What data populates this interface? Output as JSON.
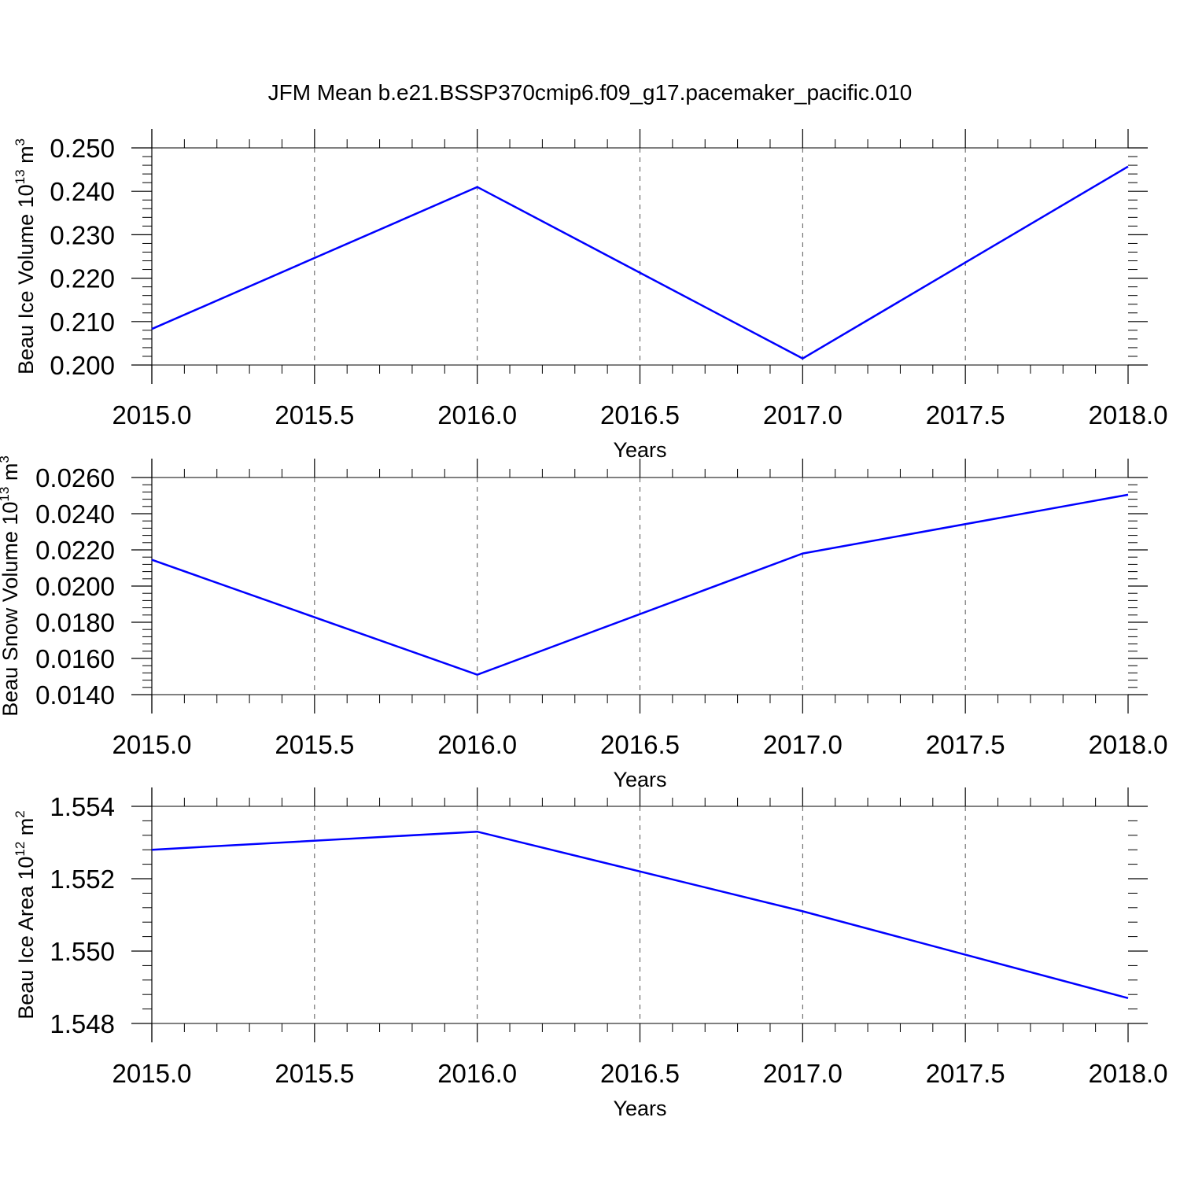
{
  "title": "JFM Mean b.e21.BSSP370cmip6.f09_g17.pacemaker_pacific.010",
  "line_color": "#0000ff",
  "chart_data": [
    {
      "type": "line",
      "title": "",
      "xlabel": "Years",
      "ylabel": {
        "text": "Beau Ice Volume 10",
        "sup": "13",
        "unit": " m",
        "unit_sup": "3"
      },
      "x": [
        2015.0,
        2016.0,
        2017.0,
        2018.0
      ],
      "y": [
        0.2083,
        0.241,
        0.2015,
        0.2457
      ],
      "xlim": [
        2015.0,
        2018.0
      ],
      "ylim": [
        0.2,
        0.25
      ],
      "xticks": [
        "2015.0",
        "2015.5",
        "2016.0",
        "2016.5",
        "2017.0",
        "2017.5",
        "2018.0"
      ],
      "yticks": [
        "0.200",
        "0.210",
        "0.220",
        "0.230",
        "0.240",
        "0.250"
      ],
      "grid": "x-dashed"
    },
    {
      "type": "line",
      "title": "",
      "xlabel": "Years",
      "ylabel": {
        "text": "Beau Snow Volume 10",
        "sup": "13",
        "unit": " m",
        "unit_sup": "3"
      },
      "x": [
        2015.0,
        2016.0,
        2017.0,
        2018.0
      ],
      "y": [
        0.02145,
        0.0151,
        0.0218,
        0.02505
      ],
      "xlim": [
        2015.0,
        2018.0
      ],
      "ylim": [
        0.014,
        0.026
      ],
      "xticks": [
        "2015.0",
        "2015.5",
        "2016.0",
        "2016.5",
        "2017.0",
        "2017.5",
        "2018.0"
      ],
      "yticks": [
        "0.0140",
        "0.0160",
        "0.0180",
        "0.0200",
        "0.0220",
        "0.0240",
        "0.0260"
      ],
      "grid": "x-dashed"
    },
    {
      "type": "line",
      "title": "",
      "xlabel": "Years",
      "ylabel": {
        "text": "Beau Ice Area 10",
        "sup": "12",
        "unit": " m",
        "unit_sup": "2"
      },
      "x": [
        2015.0,
        2016.0,
        2017.0,
        2018.0
      ],
      "y": [
        1.5528,
        1.5533,
        1.5511,
        1.5487
      ],
      "xlim": [
        2015.0,
        2018.0
      ],
      "ylim": [
        1.548,
        1.554
      ],
      "xticks": [
        "2015.0",
        "2015.5",
        "2016.0",
        "2016.5",
        "2017.0",
        "2017.5",
        "2018.0"
      ],
      "yticks": [
        "1.548",
        "1.550",
        "1.552",
        "1.554"
      ],
      "grid": "x-dashed"
    }
  ]
}
